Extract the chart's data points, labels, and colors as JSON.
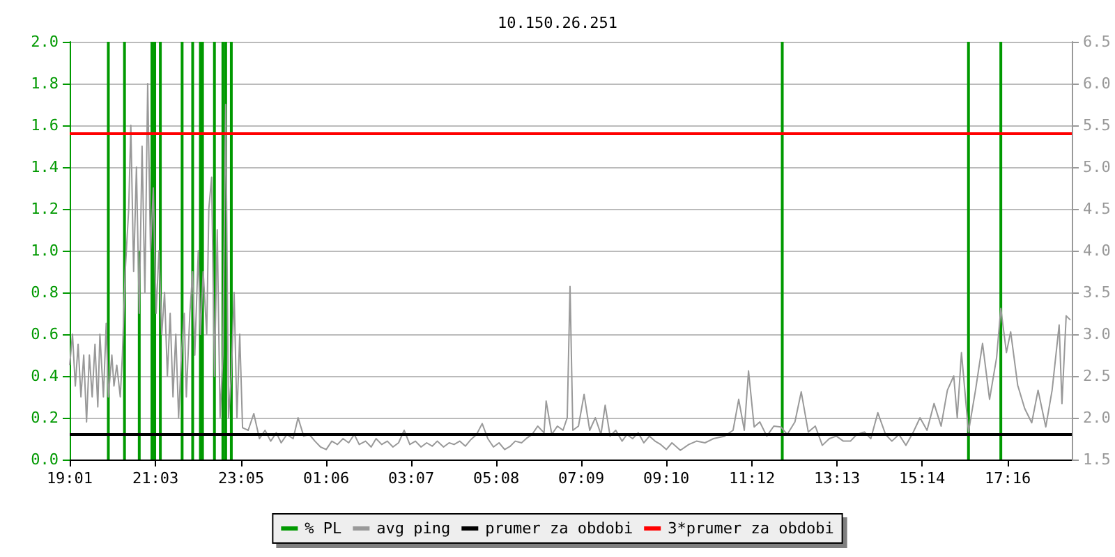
{
  "chart_data": {
    "type": "line",
    "title": "10.150.26.251",
    "xlim": [
      "--01-01T19:01",
      "--01-02T18:47"
    ],
    "xticks": [
      {
        "value": "--01-01T19:01",
        "label": "19:01"
      },
      {
        "value": "--01-01T21:03",
        "label": "21:03"
      },
      {
        "value": "--01-01T23:05",
        "label": "23:05"
      },
      {
        "value": "--01-02T01:06",
        "label": "01:06"
      },
      {
        "value": "--01-02T03:07",
        "label": "03:07"
      },
      {
        "value": "--01-02T05:08",
        "label": "05:08"
      },
      {
        "value": "--01-02T07:09",
        "label": "07:09"
      },
      {
        "value": "--01-02T09:10",
        "label": "09:10"
      },
      {
        "value": "--01-02T11:12",
        "label": "11:12"
      },
      {
        "value": "--01-02T13:13",
        "label": "13:13"
      },
      {
        "value": "--01-02T15:14",
        "label": "15:14"
      },
      {
        "value": "--01-02T17:16",
        "label": "17:16"
      }
    ],
    "ylim": [
      0,
      2
    ],
    "yticks": [
      {
        "value": 0,
        "label": "0.0"
      },
      0.2,
      0.4,
      0.6,
      0.8,
      {
        "value": 1,
        "label": "1.0"
      },
      1.2,
      1.4,
      1.6,
      1.8,
      {
        "value": 2,
        "label": "2.0"
      }
    ],
    "y2lim": [
      1.5,
      6.5
    ],
    "y2ticks": [
      1.5,
      {
        "value": 2,
        "label": "2.0"
      },
      2.5,
      {
        "value": 3,
        "label": "3.0"
      },
      3.5,
      {
        "value": 4,
        "label": "4.0"
      },
      4.5,
      {
        "value": 5,
        "label": "5.0"
      },
      5.5,
      {
        "value": 6,
        "label": "6.0"
      },
      6.5
    ],
    "grid": "y",
    "legend": "bottom",
    "marker": "none",
    "series": [
      {
        "name": "% PL",
        "type": "bar",
        "color": "#009900",
        "x": [
          "--01-01T19:56",
          "--01-01T20:19",
          "--01-01T20:40",
          "--01-01T20:58",
          "--01-01T21:02",
          "--01-01T21:10",
          "--01-01T21:41",
          "--01-01T21:56",
          "--01-01T22:07",
          "--01-01T22:10",
          "--01-01T22:27",
          "--01-01T22:39",
          "--01-01T22:43",
          "--01-01T22:51",
          "--01-02T11:55",
          "--01-02T16:20",
          "--01-02T17:06"
        ],
        "values": [
          2,
          2,
          1,
          2,
          2,
          2,
          2,
          2,
          2,
          2,
          2,
          2,
          2,
          2,
          2,
          2,
          2
        ]
      },
      {
        "name": "avg ping",
        "axis": "y2",
        "color": "#999999",
        "x": [
          "--01-01T19:01",
          "--01-01T19:05",
          "--01-01T19:09",
          "--01-01T19:13",
          "--01-01T19:17",
          "--01-01T19:21",
          "--01-01T19:25",
          "--01-01T19:29",
          "--01-01T19:33",
          "--01-01T19:37",
          "--01-01T19:41",
          "--01-01T19:44",
          "--01-01T19:49",
          "--01-01T19:53",
          "--01-01T19:56",
          "--01-01T20:01",
          "--01-01T20:04",
          "--01-01T20:08",
          "--01-01T20:13",
          "--01-01T20:16",
          "--01-01T20:20",
          "--01-01T20:25",
          "--01-01T20:28",
          "--01-01T20:32",
          "--01-01T20:36",
          "--01-01T20:40",
          "--01-01T20:44",
          "--01-01T20:48",
          "--01-01T20:52",
          "--01-01T20:56",
          "--01-01T21:00",
          "--01-01T21:04",
          "--01-01T21:08",
          "--01-01T21:12",
          "--01-01T21:16",
          "--01-01T21:20",
          "--01-01T21:24",
          "--01-01T21:28",
          "--01-01T21:32",
          "--01-01T21:36",
          "--01-01T21:40",
          "--01-01T21:44",
          "--01-01T21:47",
          "--01-01T21:52",
          "--01-01T21:56",
          "--01-01T21:59",
          "--01-01T22:04",
          "--01-01T22:07",
          "--01-01T22:11",
          "--01-01T22:16",
          "--01-01T22:19",
          "--01-01T22:23",
          "--01-01T22:27",
          "--01-01T22:31",
          "--01-01T22:35",
          "--01-01T22:39",
          "--01-01T22:43",
          "--01-01T22:47",
          "--01-01T22:51",
          "--01-01T22:55",
          "--01-01T22:59",
          "--01-01T23:03",
          "--01-01T23:07",
          "--01-01T23:15",
          "--01-01T23:23",
          "--01-01T23:31",
          "--01-01T23:39",
          "--01-01T23:47",
          "--01-01T23:55",
          "--01-02T00:02",
          "--01-02T00:10",
          "--01-02T00:19",
          "--01-02T00:26",
          "--01-02T00:34",
          "--01-02T00:42",
          "--01-02T00:50",
          "--01-02T00:58",
          "--01-02T01:06",
          "--01-02T01:14",
          "--01-02T01:22",
          "--01-02T01:30",
          "--01-02T01:38",
          "--01-02T01:46",
          "--01-02T01:53",
          "--01-02T02:02",
          "--01-02T02:10",
          "--01-02T02:17",
          "--01-02T02:25",
          "--01-02T02:33",
          "--01-02T02:41",
          "--01-02T02:49",
          "--01-02T02:57",
          "--01-02T03:05",
          "--01-02T03:13",
          "--01-02T03:21",
          "--01-02T03:29",
          "--01-02T03:37",
          "--01-02T03:44",
          "--01-02T03:53",
          "--01-02T04:01",
          "--01-02T04:08",
          "--01-02T04:16",
          "--01-02T04:24",
          "--01-02T04:32",
          "--01-02T04:40",
          "--01-02T04:48",
          "--01-02T04:56",
          "--01-02T05:04",
          "--01-02T05:12",
          "--01-02T05:20",
          "--01-02T05:28",
          "--01-02T05:35",
          "--01-02T05:44",
          "--01-02T05:52",
          "--01-02T05:59",
          "--01-02T06:07",
          "--01-02T06:16",
          "--01-02T06:19",
          "--01-02T06:27",
          "--01-02T06:35",
          "--01-02T06:43",
          "--01-02T06:49",
          "--01-02T06:53",
          "--01-02T06:57",
          "--01-02T07:05",
          "--01-02T07:13",
          "--01-02T07:21",
          "--01-02T07:29",
          "--01-02T07:37",
          "--01-02T07:43",
          "--01-02T07:50",
          "--01-02T07:58",
          "--01-02T08:07",
          "--01-02T08:14",
          "--01-02T08:22",
          "--01-02T08:30",
          "--01-02T08:38",
          "--01-02T08:46",
          "--01-02T08:54",
          "--01-02T09:02",
          "--01-02T09:10",
          "--01-02T09:18",
          "--01-02T09:30",
          "--01-02T09:42",
          "--01-02T09:53",
          "--01-02T10:05",
          "--01-02T10:17",
          "--01-02T10:33",
          "--01-02T10:45",
          "--01-02T10:53",
          "--01-02T11:01",
          "--01-02T11:07",
          "--01-02T11:15",
          "--01-02T11:23",
          "--01-02T11:33",
          "--01-02T11:43",
          "--01-02T11:53",
          "--01-02T12:02",
          "--01-02T12:13",
          "--01-02T12:22",
          "--01-02T12:32",
          "--01-02T12:42",
          "--01-02T12:52",
          "--01-02T13:02",
          "--01-02T13:12",
          "--01-02T13:22",
          "--01-02T13:32",
          "--01-02T13:41",
          "--01-02T13:52",
          "--01-02T14:01",
          "--01-02T14:11",
          "--01-02T14:22",
          "--01-02T14:31",
          "--01-02T14:41",
          "--01-02T14:51",
          "--01-02T15:01",
          "--01-02T15:11",
          "--01-02T15:21",
          "--01-02T15:31",
          "--01-02T15:41",
          "--01-02T15:50",
          "--01-02T15:59",
          "--01-02T16:04",
          "--01-02T16:10",
          "--01-02T16:20",
          "--01-02T16:30",
          "--01-02T16:40",
          "--01-02T16:50",
          "--01-02T17:00",
          "--01-02T17:06",
          "--01-02T17:14",
          "--01-02T17:20",
          "--01-02T17:30",
          "--01-02T17:40",
          "--01-02T17:50",
          "--01-02T17:59",
          "--01-02T18:10",
          "--01-02T18:19",
          "--01-02T18:29",
          "--01-02T18:33",
          "--01-02T18:39",
          "--01-02T18:45"
        ],
        "values": [
          2.63,
          3.0,
          2.38,
          2.88,
          2.25,
          2.75,
          1.95,
          2.75,
          2.25,
          2.88,
          2.13,
          3.0,
          2.25,
          3.13,
          2.25,
          2.75,
          2.38,
          2.63,
          2.25,
          2.75,
          3.75,
          4.5,
          5.5,
          3.75,
          5.0,
          3.25,
          5.25,
          3.5,
          6.0,
          4.0,
          4.75,
          3.25,
          4.0,
          3.0,
          3.5,
          2.5,
          3.25,
          2.25,
          3.0,
          2.0,
          2.75,
          3.25,
          2.25,
          3.25,
          3.75,
          2.75,
          4.0,
          3.0,
          3.75,
          3.0,
          4.5,
          4.88,
          2.5,
          4.25,
          2.0,
          2.75,
          5.75,
          2.0,
          2.5,
          3.5,
          2.0,
          3.0,
          1.88,
          1.85,
          2.05,
          1.75,
          1.85,
          1.72,
          1.82,
          1.7,
          1.8,
          1.75,
          2.0,
          1.78,
          1.8,
          1.72,
          1.65,
          1.62,
          1.72,
          1.68,
          1.75,
          1.7,
          1.8,
          1.68,
          1.72,
          1.65,
          1.75,
          1.68,
          1.72,
          1.65,
          1.7,
          1.85,
          1.68,
          1.72,
          1.65,
          1.7,
          1.66,
          1.72,
          1.65,
          1.7,
          1.68,
          1.72,
          1.66,
          1.74,
          1.8,
          1.93,
          1.75,
          1.65,
          1.7,
          1.62,
          1.66,
          1.72,
          1.7,
          1.76,
          1.8,
          1.9,
          1.82,
          2.2,
          1.8,
          1.9,
          1.85,
          2.0,
          3.57,
          1.85,
          1.9,
          2.28,
          1.85,
          2.0,
          1.8,
          2.15,
          1.78,
          1.85,
          1.72,
          1.8,
          1.75,
          1.82,
          1.7,
          1.78,
          1.72,
          1.68,
          1.62,
          1.7,
          1.61,
          1.68,
          1.72,
          1.7,
          1.75,
          1.78,
          1.85,
          2.22,
          1.85,
          2.56,
          1.89,
          1.95,
          1.78,
          1.9,
          1.89,
          1.8,
          1.95,
          2.31,
          1.83,
          1.9,
          1.67,
          1.75,
          1.78,
          1.72,
          1.72,
          1.8,
          1.83,
          1.75,
          2.06,
          1.8,
          1.72,
          1.8,
          1.67,
          1.82,
          2.0,
          1.85,
          2.17,
          1.9,
          2.33,
          2.5,
          2.0,
          2.78,
          1.83,
          2.33,
          2.89,
          2.22,
          2.72,
          3.31,
          2.78,
          3.03,
          2.39,
          2.11,
          1.94,
          2.33,
          1.89,
          2.33,
          3.11,
          2.17,
          3.22,
          3.17
        ]
      }
    ],
    "ref_lines": [
      {
        "axis": "y2",
        "value": 1.8,
        "label": "prumer za obdobi",
        "color": "#000000"
      },
      {
        "axis": "y2",
        "value": 5.4,
        "label": "3*prumer za obdobi",
        "color": "#ff0000"
      }
    ]
  }
}
